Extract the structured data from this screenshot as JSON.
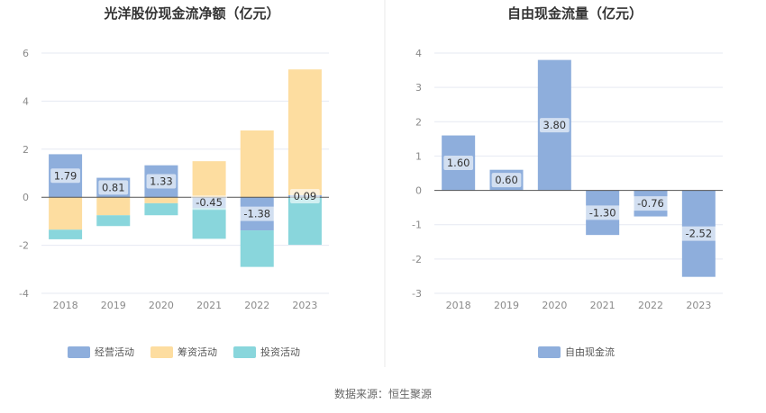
{
  "source_label": "数据来源：恒生聚源",
  "chart_data": [
    {
      "type": "bar",
      "stacked": true,
      "title": "光洋股份现金流净额（亿元）",
      "categories": [
        "2018",
        "2019",
        "2020",
        "2021",
        "2022",
        "2023"
      ],
      "ylim": [
        -4,
        6
      ],
      "yticks": [
        -4,
        -2,
        0,
        2,
        4,
        6
      ],
      "grid": true,
      "legend_placement": "bottom",
      "series": [
        {
          "name": "经营活动",
          "color": "#8eaedc",
          "values": [
            1.79,
            0.81,
            1.33,
            -0.45,
            -1.38,
            0.09
          ],
          "labels": [
            "1.79",
            "0.81",
            "1.33",
            "-0.45",
            "-1.38",
            "0.09"
          ]
        },
        {
          "name": "筹资活动",
          "color": "#fddda0",
          "values": [
            -1.35,
            -0.75,
            -0.25,
            1.5,
            2.78,
            5.23
          ]
        },
        {
          "name": "投资活动",
          "color": "#89d6dc",
          "values": [
            -0.4,
            -0.45,
            -0.5,
            -1.28,
            -1.52,
            -1.98
          ]
        }
      ]
    },
    {
      "type": "bar",
      "title": "自由现金流量（亿元）",
      "categories": [
        "2018",
        "2019",
        "2020",
        "2021",
        "2022",
        "2023"
      ],
      "ylim": [
        -3,
        4
      ],
      "yticks": [
        -3,
        -2,
        -1,
        0,
        1,
        2,
        3,
        4
      ],
      "grid": true,
      "legend_placement": "bottom",
      "series": [
        {
          "name": "自由现金流",
          "color": "#8eaedc",
          "values": [
            1.6,
            0.6,
            3.8,
            -1.3,
            -0.76,
            -2.52
          ],
          "labels": [
            "1.60",
            "0.60",
            "3.80",
            "-1.30",
            "-0.76",
            "-2.52"
          ]
        }
      ]
    }
  ]
}
